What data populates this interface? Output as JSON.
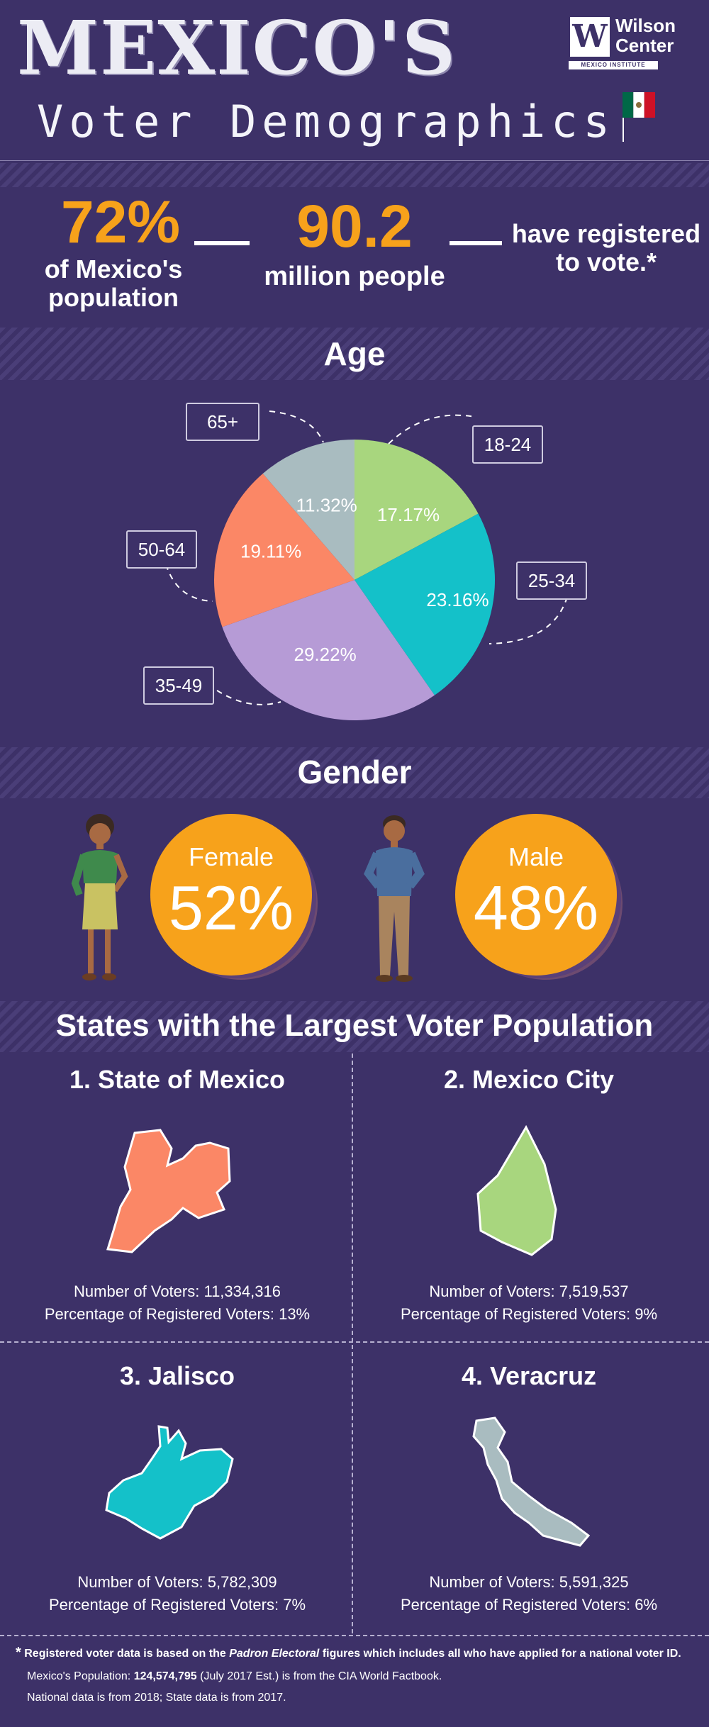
{
  "header": {
    "title": "MEXICO'S",
    "subtitle": "Voter Demographics",
    "logo": {
      "name_line1": "Wilson",
      "name_line2": "Center",
      "institute": "MEXICO INSTITUTE",
      "icon": "wilson-center-w-logo"
    },
    "flag": {
      "icon": "mexico-flag",
      "colors": [
        "#006847",
        "#ffffff",
        "#ce1126"
      ]
    }
  },
  "summary": {
    "percent": "72%",
    "percent_caption_1": "of Mexico's",
    "percent_caption_2": "population",
    "count": "90.2",
    "count_caption": "million people",
    "registered_1": "have registered",
    "registered_2": "to vote.*"
  },
  "age": {
    "title": "Age",
    "chart_data": {
      "type": "pie",
      "categories": [
        "18-24",
        "25-34",
        "35-49",
        "50-64",
        "65+"
      ],
      "values": [
        17.17,
        23.16,
        29.22,
        19.11,
        11.32
      ],
      "value_labels": [
        "17.17%",
        "23.16%",
        "29.22%",
        "19.11%",
        "11.32%"
      ],
      "colors": [
        "#a8d67e",
        "#14c1c9",
        "#b69bd6",
        "#fb8766",
        "#a9bcc0"
      ]
    }
  },
  "gender": {
    "title": "Gender",
    "female": {
      "label": "Female",
      "value": "52%",
      "icon": "woman-figure-icon"
    },
    "male": {
      "label": "Male",
      "value": "48%",
      "icon": "man-figure-icon"
    },
    "circle_color": "#f7a21b"
  },
  "states": {
    "title": "States with the Largest Voter Population",
    "voters_prefix": "Number of Voters: ",
    "percent_prefix": "Percentage of Registered Voters: ",
    "items": [
      {
        "name": "1. State of Mexico",
        "voters": "11,334,316",
        "percent": "13%",
        "color": "#fb8766",
        "icon": "state-of-mexico-map"
      },
      {
        "name": "2. Mexico City",
        "voters": "7,519,537",
        "percent": "9%",
        "color": "#a8d67e",
        "icon": "mexico-city-map"
      },
      {
        "name": "3. Jalisco",
        "voters": "5,782,309",
        "percent": "7%",
        "color": "#14c1c9",
        "icon": "jalisco-map"
      },
      {
        "name": "4. Veracruz",
        "voters": "5,591,325",
        "percent": "6%",
        "color": "#a9bcc0",
        "icon": "veracruz-map"
      }
    ]
  },
  "footer": {
    "asterisk": "*",
    "note_a": " Registered voter data is based on the ",
    "note_em": "Padron Electoral",
    "note_b": " figures which includes all who have applied for a national voter ID.",
    "pop_a": "Mexico's Population: ",
    "pop_value": "124,574,795",
    "pop_b": " (July 2017 Est.)  is from the CIA World Factbook.",
    "national": "National data is from 2018;",
    "state": " State data is from 2017."
  }
}
